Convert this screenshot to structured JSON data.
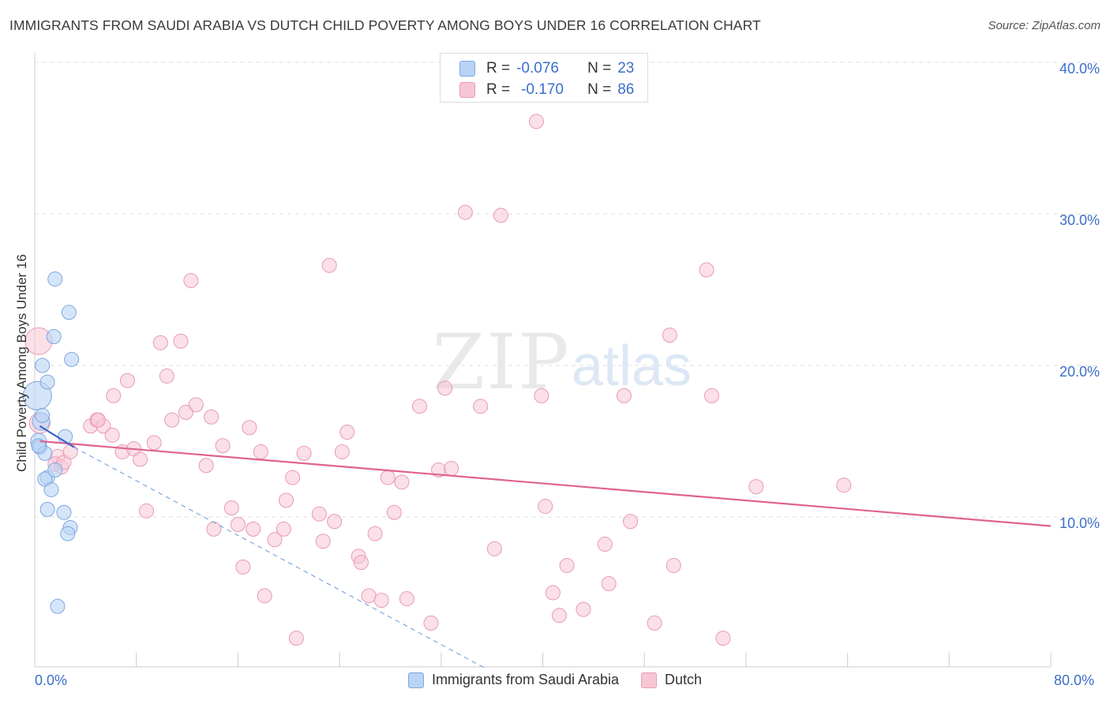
{
  "title": "IMMIGRANTS FROM SAUDI ARABIA VS DUTCH CHILD POVERTY AMONG BOYS UNDER 16 CORRELATION CHART",
  "source": "Source: ZipAtlas.com",
  "watermark": {
    "zip": "ZIP",
    "atlas": "atlas"
  },
  "legend": {
    "rows": [
      {
        "r_label": "R =",
        "r_value": "-0.076",
        "n_label": "N =",
        "n_value": "23"
      },
      {
        "r_label": "R =",
        "r_value": "-0.170",
        "n_label": "N =",
        "n_value": "86"
      }
    ]
  },
  "colors": {
    "blue_fill": "#b9d3f5",
    "blue_stroke": "#7ea6e0",
    "blue_line": "#3a66c8",
    "pink_fill": "#f7c6d5",
    "pink_stroke": "#e89ab3",
    "pink_line": "#e0628f",
    "axis_text": "#3b6fc9",
    "grid": "#dddddd"
  },
  "chart_data": {
    "type": "scatter",
    "title": "IMMIGRANTS FROM SAUDI ARABIA VS DUTCH CHILD POVERTY AMONG BOYS UNDER 16 CORRELATION CHART",
    "xlabel": "",
    "ylabel": "Child Poverty Among Boys Under 16",
    "xlim": [
      0,
      80
    ],
    "ylim": [
      0,
      42
    ],
    "x_tick_labels": [
      "0.0%",
      "80.0%"
    ],
    "y_ticks": [
      10,
      20,
      30,
      40
    ],
    "y_tick_labels": [
      "10.0%",
      "20.0%",
      "30.0%",
      "40.0%"
    ],
    "grid": true,
    "legend_position": "top-center",
    "series": [
      {
        "name": "Immigrants from Saudi Arabia",
        "points": [
          [
            0.2,
            18.0,
            18
          ],
          [
            0.5,
            16.3,
            11
          ],
          [
            0.3,
            15.0,
            10
          ],
          [
            0.6,
            16.7,
            9
          ],
          [
            0.4,
            14.6,
            9
          ],
          [
            0.6,
            20.0,
            9
          ],
          [
            1.0,
            18.9,
            9
          ],
          [
            1.5,
            21.9,
            9
          ],
          [
            1.6,
            25.7,
            9
          ],
          [
            2.7,
            23.5,
            9
          ],
          [
            2.9,
            20.4,
            9
          ],
          [
            0.8,
            14.2,
            9
          ],
          [
            1.0,
            12.6,
            9
          ],
          [
            0.8,
            12.5,
            9
          ],
          [
            1.3,
            11.8,
            9
          ],
          [
            1.6,
            13.1,
            9
          ],
          [
            2.4,
            15.3,
            9
          ],
          [
            1.0,
            10.5,
            9
          ],
          [
            2.3,
            10.3,
            9
          ],
          [
            2.8,
            9.3,
            9
          ],
          [
            2.6,
            8.9,
            9
          ],
          [
            1.8,
            4.1,
            9
          ],
          [
            0.3,
            14.7,
            9
          ]
        ],
        "trend": {
          "x": [
            0.4,
            3.1
          ],
          "y": [
            16.0,
            14.6
          ]
        },
        "trend_extended": {
          "x": [
            3.1,
            35.5
          ],
          "y": [
            14.6,
            0.0
          ]
        }
      },
      {
        "name": "Dutch",
        "points": [
          [
            0.3,
            21.6,
            17
          ],
          [
            0.4,
            16.2,
            13
          ],
          [
            1.8,
            14.0,
            9
          ],
          [
            1.6,
            13.5,
            9
          ],
          [
            2.1,
            13.3,
            9
          ],
          [
            2.3,
            13.6,
            9
          ],
          [
            2.8,
            14.3,
            9
          ],
          [
            4.4,
            16.0,
            9
          ],
          [
            4.9,
            16.4,
            9
          ],
          [
            5.4,
            16.0,
            9
          ],
          [
            5.0,
            16.4,
            9
          ],
          [
            6.1,
            15.4,
            9
          ],
          [
            6.2,
            18.0,
            9
          ],
          [
            6.9,
            14.3,
            9
          ],
          [
            7.3,
            19.0,
            9
          ],
          [
            7.8,
            14.5,
            9
          ],
          [
            8.3,
            13.8,
            9
          ],
          [
            8.8,
            10.4,
            9
          ],
          [
            9.4,
            14.9,
            9
          ],
          [
            9.9,
            21.5,
            9
          ],
          [
            10.4,
            19.3,
            9
          ],
          [
            10.8,
            16.4,
            9
          ],
          [
            11.5,
            21.6,
            9
          ],
          [
            11.9,
            16.9,
            9
          ],
          [
            12.3,
            25.6,
            9
          ],
          [
            12.7,
            17.4,
            9
          ],
          [
            13.5,
            13.4,
            9
          ],
          [
            13.9,
            16.6,
            9
          ],
          [
            14.1,
            9.2,
            9
          ],
          [
            14.8,
            14.7,
            9
          ],
          [
            15.5,
            10.6,
            9
          ],
          [
            16.0,
            9.5,
            9
          ],
          [
            16.4,
            6.7,
            9
          ],
          [
            16.9,
            15.9,
            9
          ],
          [
            17.2,
            9.2,
            9
          ],
          [
            17.8,
            14.3,
            9
          ],
          [
            18.1,
            4.8,
            9
          ],
          [
            18.9,
            8.5,
            9
          ],
          [
            19.6,
            9.2,
            9
          ],
          [
            19.8,
            11.1,
            9
          ],
          [
            20.3,
            12.6,
            9
          ],
          [
            20.6,
            2.0,
            9
          ],
          [
            21.2,
            14.2,
            9
          ],
          [
            22.4,
            10.2,
            9
          ],
          [
            22.7,
            8.4,
            9
          ],
          [
            23.2,
            26.6,
            9
          ],
          [
            23.6,
            9.7,
            9
          ],
          [
            24.2,
            14.3,
            9
          ],
          [
            24.6,
            15.6,
            9
          ],
          [
            25.5,
            7.4,
            9
          ],
          [
            25.7,
            7.0,
            9
          ],
          [
            26.3,
            4.8,
            9
          ],
          [
            26.8,
            8.9,
            9
          ],
          [
            27.3,
            4.5,
            9
          ],
          [
            27.8,
            12.6,
            9
          ],
          [
            28.3,
            10.3,
            9
          ],
          [
            28.9,
            12.3,
            9
          ],
          [
            29.3,
            4.6,
            9
          ],
          [
            30.3,
            17.3,
            9
          ],
          [
            31.2,
            3.0,
            9
          ],
          [
            31.8,
            13.1,
            9
          ],
          [
            32.3,
            18.5,
            9
          ],
          [
            32.8,
            13.2,
            9
          ],
          [
            33.9,
            30.1,
            9
          ],
          [
            35.1,
            17.3,
            9
          ],
          [
            36.2,
            7.9,
            9
          ],
          [
            36.7,
            29.9,
            9
          ],
          [
            39.5,
            36.1,
            9
          ],
          [
            39.9,
            18.0,
            9
          ],
          [
            40.2,
            10.7,
            9
          ],
          [
            40.8,
            5.0,
            9
          ],
          [
            41.3,
            3.5,
            9
          ],
          [
            41.9,
            6.8,
            9
          ],
          [
            43.2,
            3.9,
            9
          ],
          [
            44.9,
            8.2,
            9
          ],
          [
            45.2,
            5.6,
            9
          ],
          [
            46.4,
            18.0,
            9
          ],
          [
            46.9,
            9.7,
            9
          ],
          [
            48.8,
            3.0,
            9
          ],
          [
            50.0,
            22.0,
            9
          ],
          [
            50.3,
            6.8,
            9
          ],
          [
            52.9,
            26.3,
            9
          ],
          [
            53.3,
            18.0,
            9
          ],
          [
            54.2,
            2.0,
            9
          ],
          [
            56.8,
            12.0,
            9
          ],
          [
            63.7,
            12.1,
            9
          ]
        ],
        "trend": {
          "x": [
            0.4,
            80.0
          ],
          "y": [
            15.0,
            9.4
          ]
        }
      }
    ]
  },
  "bottom_legend": [
    {
      "label": "Immigrants from Saudi Arabia"
    },
    {
      "label": "Dutch"
    }
  ]
}
